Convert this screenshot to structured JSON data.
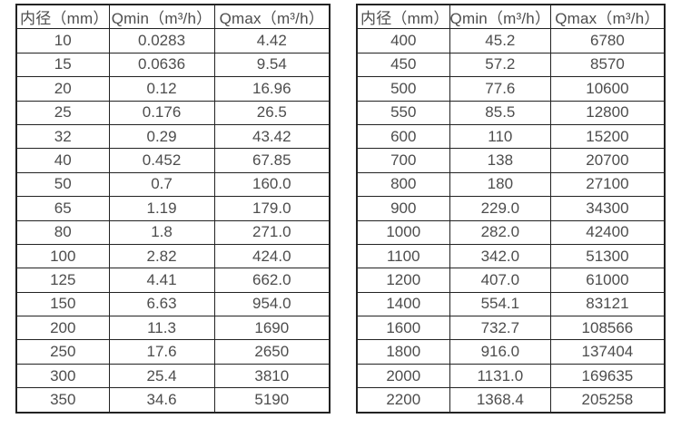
{
  "colors": {
    "background": "#ffffff",
    "border": "#222222",
    "text": "#4d4d4d"
  },
  "tables": [
    {
      "name": "flow-rate-table-small-diameters",
      "columns": [
        "内径（mm）",
        "Qmin（m³/h）",
        "Qmax（m³/h）"
      ],
      "rows": [
        [
          "10",
          "0.0283",
          "4.42"
        ],
        [
          "15",
          "0.0636",
          "9.54"
        ],
        [
          "20",
          "0.12",
          "16.96"
        ],
        [
          "25",
          "0.176",
          "26.5"
        ],
        [
          "32",
          "0.29",
          "43.42"
        ],
        [
          "40",
          "0.452",
          "67.85"
        ],
        [
          "50",
          "0.7",
          "160.0"
        ],
        [
          "65",
          "1.19",
          "179.0"
        ],
        [
          "80",
          "1.8",
          "271.0"
        ],
        [
          "100",
          "2.82",
          "424.0"
        ],
        [
          "125",
          "4.41",
          "662.0"
        ],
        [
          "150",
          "6.63",
          "954.0"
        ],
        [
          "200",
          "11.3",
          "1690"
        ],
        [
          "250",
          "17.6",
          "2650"
        ],
        [
          "300",
          "25.4",
          "3810"
        ],
        [
          "350",
          "34.6",
          "5190"
        ]
      ]
    },
    {
      "name": "flow-rate-table-large-diameters",
      "columns": [
        "内径（mm）",
        "Qmin（m³/h）",
        "Qmax（m³/h）"
      ],
      "rows": [
        [
          "400",
          "45.2",
          "6780"
        ],
        [
          "450",
          "57.2",
          "8570"
        ],
        [
          "500",
          "77.6",
          "10600"
        ],
        [
          "550",
          "85.5",
          "12800"
        ],
        [
          "600",
          "110",
          "15200"
        ],
        [
          "700",
          "138",
          "20700"
        ],
        [
          "800",
          "180",
          "27100"
        ],
        [
          "900",
          "229.0",
          "34300"
        ],
        [
          "1000",
          "282.0",
          "42400"
        ],
        [
          "1100",
          "342.0",
          "51300"
        ],
        [
          "1200",
          "407.0",
          "61000"
        ],
        [
          "1400",
          "554.1",
          "83121"
        ],
        [
          "1600",
          "732.7",
          "108566"
        ],
        [
          "1800",
          "916.0",
          "137404"
        ],
        [
          "2000",
          "1131.0",
          "169635"
        ],
        [
          "2200",
          "1368.4",
          "205258"
        ]
      ]
    }
  ]
}
